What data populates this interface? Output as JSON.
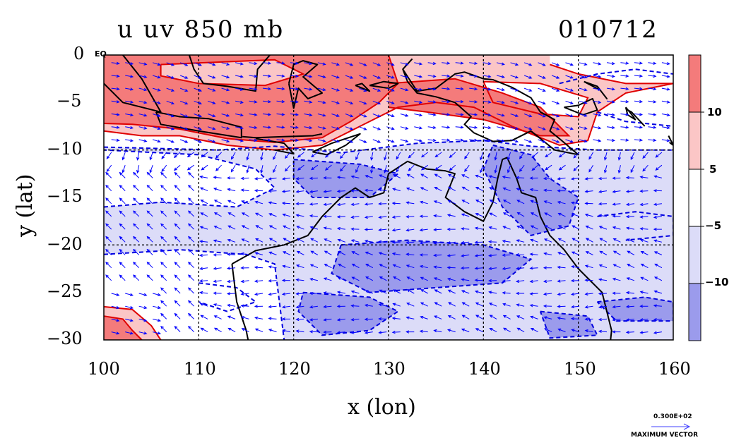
{
  "header": {
    "title": "u uv 850 mb",
    "date": "010712"
  },
  "axes": {
    "xlabel": "x (lon)",
    "ylabel": "y (lat)",
    "x_ticks": [
      "100",
      "110",
      "120",
      "130",
      "140",
      "150",
      "160"
    ],
    "y_ticks": [
      "0",
      "−5",
      "−10",
      "−15",
      "−20",
      "−25",
      "−30"
    ],
    "corner_label": "EQ"
  },
  "colorbar": {
    "labels": [
      "10",
      "5",
      "−5",
      "−10"
    ],
    "colors": [
      "#f47b7b",
      "#fbc6c6",
      "#ffffff",
      "#dcdcf8",
      "#9b9bec"
    ]
  },
  "vector_legend": {
    "value": "0.300E+02",
    "caption": "MAXIMUM VECTOR"
  },
  "map": {
    "lon_range": [
      100,
      160
    ],
    "lat_range": [
      -30,
      0
    ],
    "grid_lons": [
      110,
      120,
      130,
      140,
      150
    ],
    "grid_lats": [
      -10,
      -20
    ],
    "colors": {
      "strong_west": "#f47b7b",
      "west": "#fbc6c6",
      "east": "#dcdcf8",
      "strong_east": "#9b9bec",
      "pos_contour": "#e00000",
      "neg_contour": "#0000e0",
      "vector": "#0000ff",
      "coast": "#000000"
    }
  }
}
